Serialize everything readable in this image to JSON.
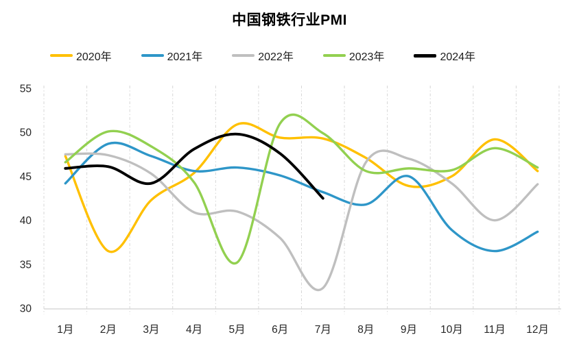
{
  "title": "中国钢铁行业PMI",
  "chart_data": {
    "type": "line",
    "title": "中国钢铁行业PMI",
    "smooth": true,
    "legend_position": "top",
    "grid": "vertical dash-dot gridlines only, light gray bottom axis line",
    "x_categories": [
      "1月",
      "2月",
      "3月",
      "4月",
      "5月",
      "6月",
      "7月",
      "8月",
      "9月",
      "10月",
      "11月",
      "12月"
    ],
    "y_ticks": [
      30,
      35,
      40,
      45,
      50,
      55
    ],
    "ylim": [
      30,
      55
    ],
    "series": [
      {
        "name": "2020年",
        "color": "#FFC000",
        "values": [
          47.3,
          36.5,
          42.3,
          45.4,
          50.9,
          49.4,
          49.3,
          47.1,
          43.9,
          45.0,
          49.2,
          45.6
        ]
      },
      {
        "name": "2021年",
        "color": "#2E96C8",
        "values": [
          44.2,
          48.7,
          47.3,
          45.6,
          46.0,
          45.1,
          43.2,
          41.8,
          45.0,
          38.9,
          36.5,
          38.7
        ]
      },
      {
        "name": "2022年",
        "color": "#BFBFBF",
        "values": [
          47.5,
          47.4,
          45.3,
          40.9,
          41.0,
          38.0,
          32.3,
          46.6,
          47.0,
          44.2,
          40.0,
          44.1
        ]
      },
      {
        "name": "2023年",
        "color": "#92D050",
        "values": [
          46.6,
          50.1,
          48.4,
          44.3,
          35.2,
          51.0,
          49.9,
          45.6,
          45.9,
          45.7,
          48.2,
          46.0
        ]
      },
      {
        "name": "2024年",
        "color": "#000000",
        "values": [
          45.9,
          46.1,
          44.2,
          48.1,
          49.8,
          47.6,
          42.5,
          null,
          null,
          null,
          null,
          null
        ]
      }
    ]
  },
  "style": {
    "background": "#FFFFFF",
    "gridline_color": "#D5D5D5",
    "axis_line_color": "#D9D9D9",
    "tick_label_color": "#262626"
  }
}
